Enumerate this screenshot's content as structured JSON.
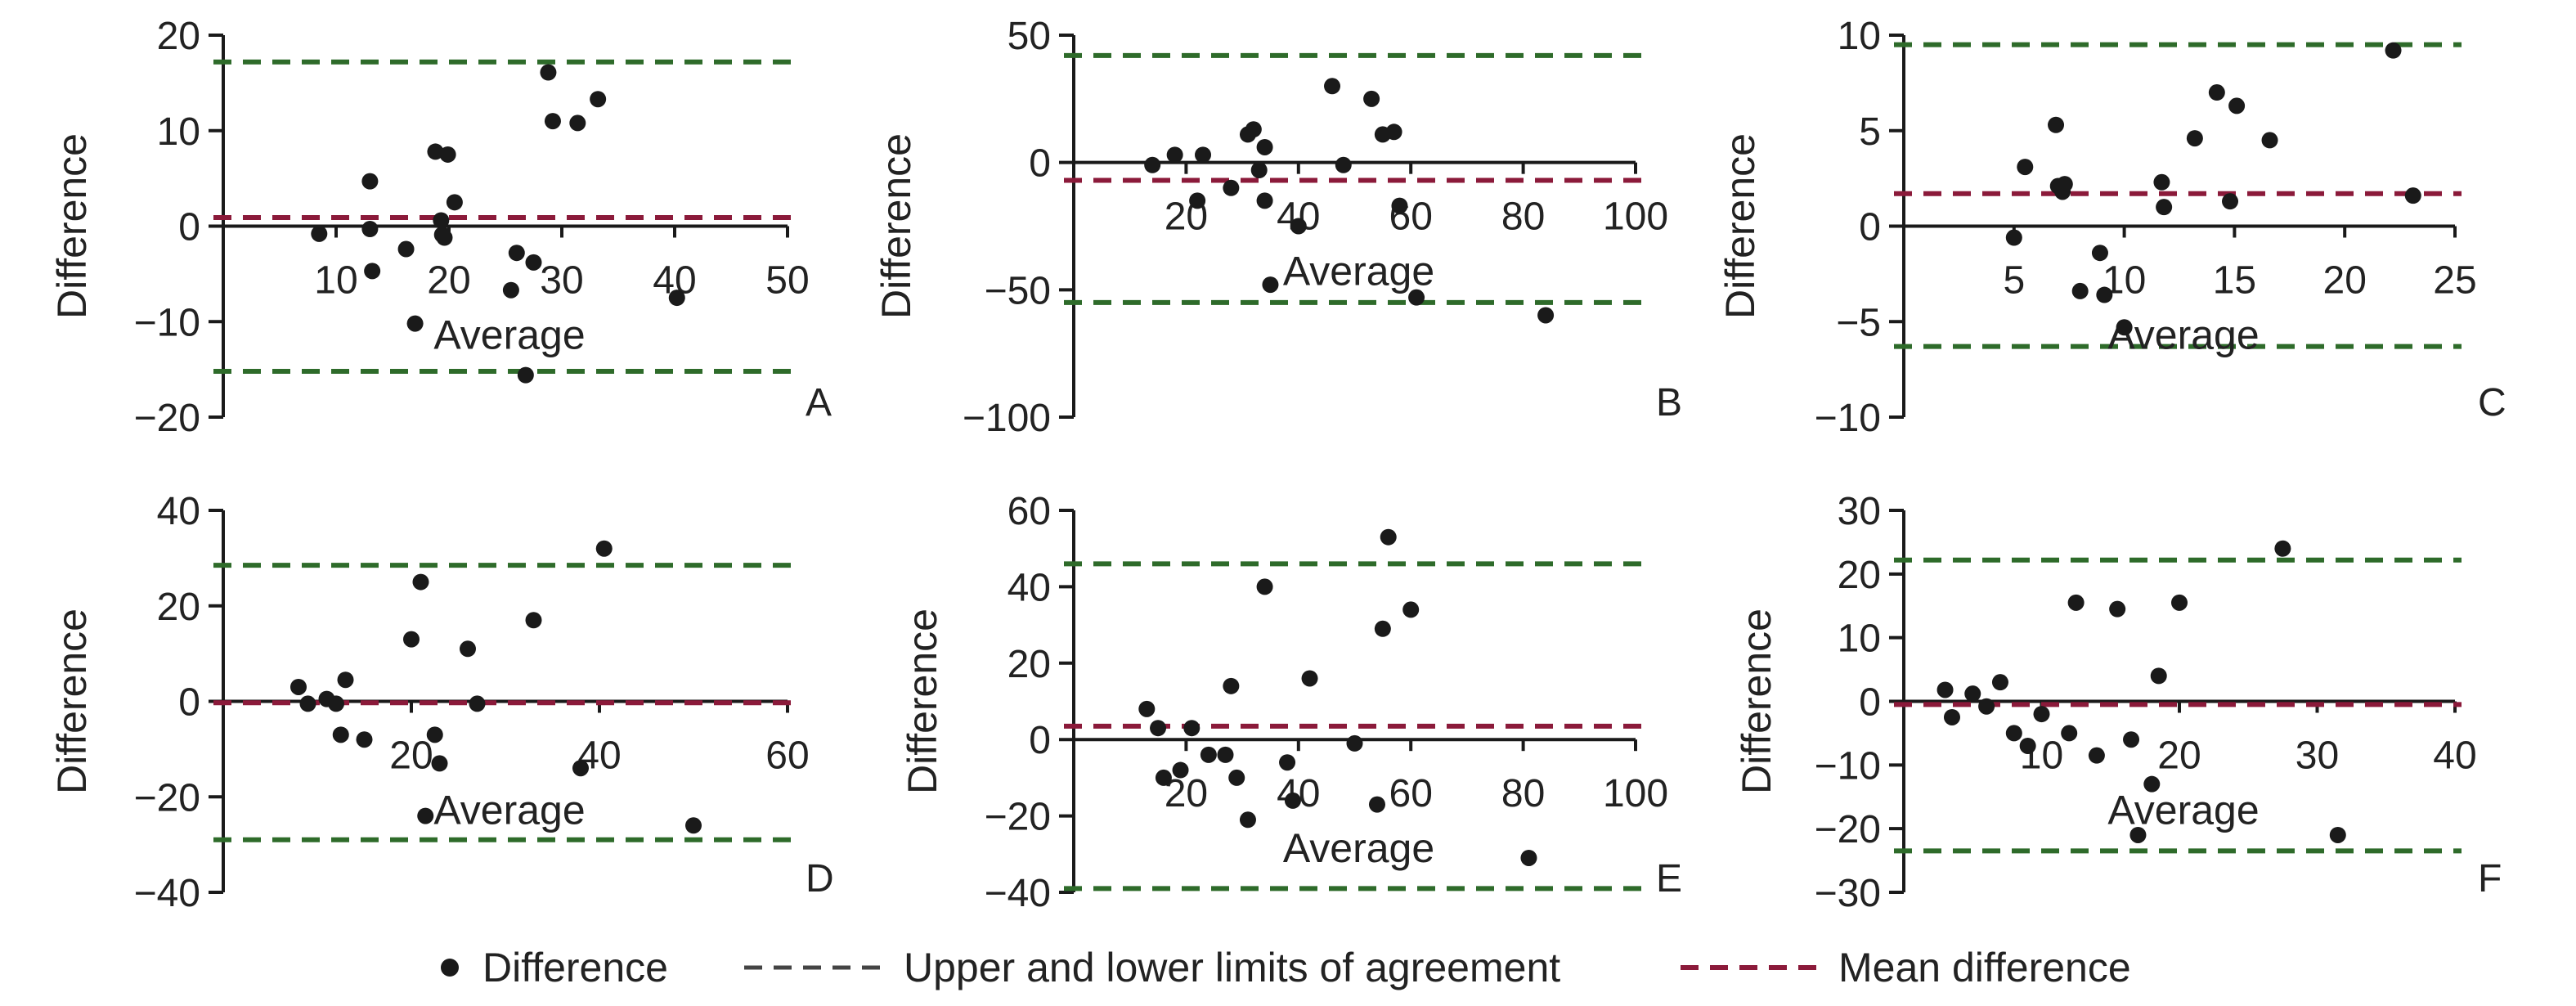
{
  "colors": {
    "points": "#1a1a1a",
    "limits": "#2e6b2a",
    "mean": "#8b1a3a",
    "axis": "#1a1a1a"
  },
  "legend": {
    "difference": "Difference",
    "limits": "Upper and lower limits of agreement",
    "mean": "Mean difference"
  },
  "chart_data": [
    {
      "type": "scatter",
      "panel": "A",
      "xlabel": "Average",
      "ylabel": "Difference",
      "xlim": [
        0,
        50
      ],
      "ylim": [
        -20,
        20
      ],
      "xticks": [
        10,
        20,
        30,
        40,
        50
      ],
      "yticks": [
        -20,
        -10,
        0,
        10,
        20
      ],
      "upper_limit": 17.2,
      "lower_limit": -15.2,
      "mean_difference": 0.9,
      "points": [
        [
          8.5,
          -0.8
        ],
        [
          13,
          4.7
        ],
        [
          13,
          -0.3
        ],
        [
          13.2,
          -4.7
        ],
        [
          16.2,
          -2.4
        ],
        [
          17,
          -10.2
        ],
        [
          18.8,
          7.8
        ],
        [
          19.3,
          0.6
        ],
        [
          19.4,
          -0.9
        ],
        [
          19.6,
          -1.2
        ],
        [
          19.9,
          7.5
        ],
        [
          20.5,
          2.5
        ],
        [
          25.5,
          -6.7
        ],
        [
          26,
          -2.8
        ],
        [
          26.8,
          -15.6
        ],
        [
          27.5,
          -3.8
        ],
        [
          28.8,
          16.1
        ],
        [
          29.2,
          11
        ],
        [
          31.4,
          10.8
        ],
        [
          33.2,
          13.3
        ],
        [
          40.2,
          -7.5
        ]
      ]
    },
    {
      "type": "scatter",
      "panel": "B",
      "xlabel": "Average",
      "ylabel": "Difference",
      "xlim": [
        0,
        100
      ],
      "ylim": [
        -100,
        50
      ],
      "xticks": [
        20,
        40,
        60,
        80,
        100
      ],
      "yticks": [
        -100,
        -50,
        0,
        50
      ],
      "upper_limit": 42,
      "lower_limit": -55,
      "mean_difference": -7,
      "points": [
        [
          14,
          -1
        ],
        [
          18,
          3
        ],
        [
          22,
          -15
        ],
        [
          23,
          3
        ],
        [
          28,
          -10
        ],
        [
          31,
          11
        ],
        [
          32,
          13
        ],
        [
          33,
          -3
        ],
        [
          34,
          6
        ],
        [
          34,
          -15
        ],
        [
          35,
          -48
        ],
        [
          40,
          -25
        ],
        [
          46,
          30
        ],
        [
          48,
          -1
        ],
        [
          53,
          25
        ],
        [
          55,
          11
        ],
        [
          57,
          12
        ],
        [
          58,
          -17
        ],
        [
          61,
          -53
        ],
        [
          84,
          -60
        ]
      ]
    },
    {
      "type": "scatter",
      "panel": "C",
      "xlabel": "Average",
      "ylabel": "Difference",
      "xlim": [
        0,
        25
      ],
      "ylim": [
        -10,
        10
      ],
      "xticks": [
        5,
        10,
        15,
        20,
        25
      ],
      "yticks": [
        -10,
        -5,
        0,
        5,
        10
      ],
      "upper_limit": 9.5,
      "lower_limit": -6.3,
      "mean_difference": 1.7,
      "points": [
        [
          5,
          -0.6
        ],
        [
          5.5,
          3.1
        ],
        [
          6.9,
          5.3
        ],
        [
          7,
          2.1
        ],
        [
          7.2,
          1.8
        ],
        [
          7.3,
          2.2
        ],
        [
          8,
          -3.4
        ],
        [
          8.9,
          -1.4
        ],
        [
          9.1,
          -3.6
        ],
        [
          10,
          -5.3
        ],
        [
          11.7,
          2.3
        ],
        [
          11.8,
          1
        ],
        [
          13.2,
          4.6
        ],
        [
          14.2,
          7
        ],
        [
          14.8,
          1.3
        ],
        [
          15.1,
          6.3
        ],
        [
          16.6,
          4.5
        ],
        [
          22.2,
          9.2
        ],
        [
          23.1,
          1.6
        ]
      ]
    },
    {
      "type": "scatter",
      "panel": "D",
      "xlabel": "Average",
      "ylabel": "Difference",
      "xlim": [
        0,
        60
      ],
      "ylim": [
        -40,
        40
      ],
      "xticks": [
        20,
        40,
        60
      ],
      "yticks": [
        -40,
        -20,
        0,
        20,
        40
      ],
      "upper_limit": 28.5,
      "lower_limit": -29,
      "mean_difference": -0.3,
      "points": [
        [
          8,
          3
        ],
        [
          9,
          -0.5
        ],
        [
          11,
          0.5
        ],
        [
          12,
          -0.5
        ],
        [
          12.5,
          -7
        ],
        [
          13,
          4.5
        ],
        [
          15,
          -8
        ],
        [
          20,
          13
        ],
        [
          21,
          25
        ],
        [
          21.5,
          -24
        ],
        [
          22.5,
          -7
        ],
        [
          23,
          -13
        ],
        [
          26,
          11
        ],
        [
          27,
          -0.5
        ],
        [
          33,
          17
        ],
        [
          38,
          -14
        ],
        [
          40.5,
          32
        ],
        [
          50,
          -26
        ]
      ]
    },
    {
      "type": "scatter",
      "panel": "E",
      "xlabel": "Average",
      "ylabel": "Difference",
      "xlim": [
        0,
        100
      ],
      "ylim": [
        -40,
        60
      ],
      "xticks": [
        20,
        40,
        60,
        80,
        100
      ],
      "yticks": [
        -40,
        -20,
        0,
        20,
        40,
        60
      ],
      "upper_limit": 46,
      "lower_limit": -39,
      "mean_difference": 3.5,
      "points": [
        [
          13,
          8
        ],
        [
          15,
          3
        ],
        [
          16,
          -10
        ],
        [
          19,
          -8
        ],
        [
          21,
          3
        ],
        [
          24,
          -4
        ],
        [
          27,
          -4
        ],
        [
          28,
          14
        ],
        [
          29,
          -10
        ],
        [
          31,
          -21
        ],
        [
          34,
          40
        ],
        [
          38,
          -6
        ],
        [
          39,
          -16
        ],
        [
          42,
          16
        ],
        [
          50,
          -1
        ],
        [
          54,
          -17
        ],
        [
          55,
          29
        ],
        [
          56,
          53
        ],
        [
          60,
          34
        ],
        [
          81,
          -31
        ]
      ]
    },
    {
      "type": "scatter",
      "panel": "F",
      "xlabel": "Average",
      "ylabel": "Difference",
      "xlim": [
        0,
        40
      ],
      "ylim": [
        -30,
        30
      ],
      "xticks": [
        10,
        20,
        30,
        40
      ],
      "yticks": [
        -30,
        -20,
        -10,
        0,
        10,
        20,
        30
      ],
      "upper_limit": 22.2,
      "lower_limit": -23.5,
      "mean_difference": -0.5,
      "points": [
        [
          3,
          1.8
        ],
        [
          3.5,
          -2.5
        ],
        [
          5,
          1.2
        ],
        [
          6,
          -0.8
        ],
        [
          7,
          3
        ],
        [
          8,
          -5
        ],
        [
          9,
          -7
        ],
        [
          10,
          -2
        ],
        [
          12,
          -5
        ],
        [
          12.5,
          15.5
        ],
        [
          14,
          -8.5
        ],
        [
          15.5,
          14.5
        ],
        [
          16.5,
          -6
        ],
        [
          17,
          -21
        ],
        [
          18,
          -13
        ],
        [
          18.5,
          4
        ],
        [
          20,
          15.5
        ],
        [
          27.5,
          24
        ],
        [
          31.5,
          -21
        ]
      ]
    }
  ]
}
